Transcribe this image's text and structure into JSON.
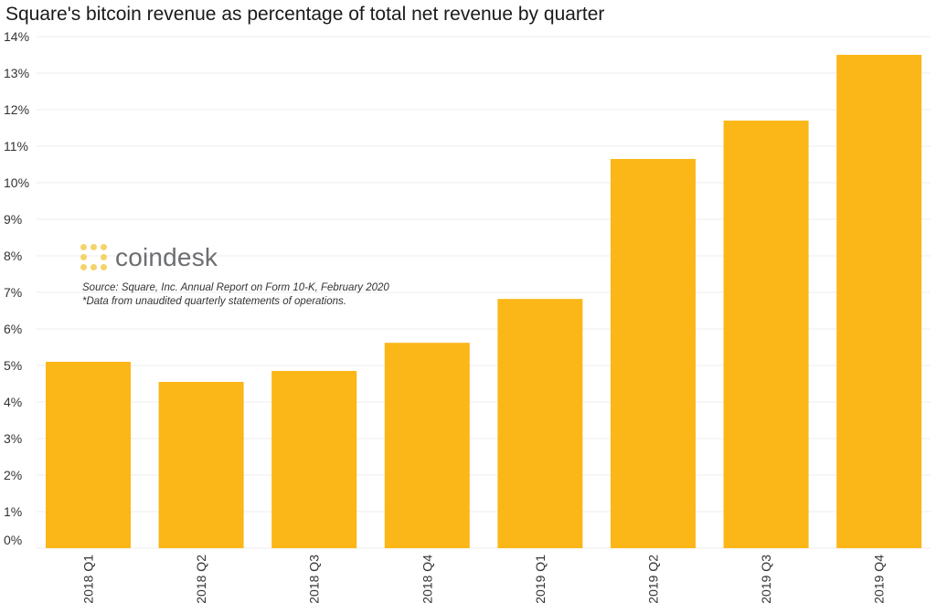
{
  "chart_data": {
    "type": "bar",
    "title": "Square's bitcoin revenue as percentage of total net revenue by quarter",
    "categories": [
      "2018 Q1",
      "2018 Q2",
      "2018 Q3",
      "2018 Q4",
      "2019 Q1",
      "2019 Q2",
      "2019 Q3",
      "2019 Q4"
    ],
    "values": [
      5.1,
      4.55,
      4.85,
      5.62,
      6.82,
      10.65,
      11.7,
      13.5
    ],
    "ylim": [
      0,
      14
    ],
    "yticks": [
      "0%",
      "1%",
      "2%",
      "3%",
      "4%",
      "5%",
      "6%",
      "7%",
      "8%",
      "9%",
      "10%",
      "11%",
      "12%",
      "13%",
      "14%"
    ],
    "xlabel": "",
    "ylabel": "",
    "grid": true,
    "bar_color": "#fbb618"
  },
  "branding": {
    "logo_text": "coindesk",
    "logo_color": "#f5d36b"
  },
  "source": {
    "line1": "Source: Square, Inc. Annual Report on Form 10-K, February 2020",
    "line2": "*Data from unaudited quarterly statements of operations."
  }
}
